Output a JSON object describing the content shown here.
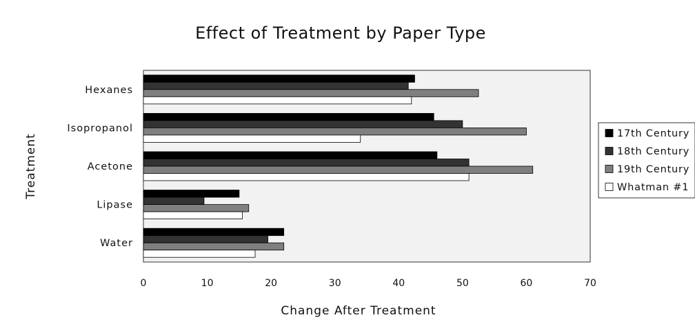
{
  "chart_data": {
    "type": "bar",
    "orientation": "horizontal",
    "title": "Effect of Treatment by Paper Type",
    "xlabel": "Change After Treatment",
    "ylabel": "Treatment",
    "categories": [
      "Hexanes",
      "Isopropanol",
      "Acetone",
      "Lipase",
      "Water"
    ],
    "xlim": [
      0,
      70
    ],
    "xticks": [
      "0",
      "10",
      "20",
      "30",
      "40",
      "50",
      "60",
      "70"
    ],
    "grid": false,
    "legend_position": "right",
    "plot_background": "#f2f2f2",
    "series": [
      {
        "name": "17th Century",
        "color": "#000000",
        "values": [
          42.5,
          45.5,
          46,
          15,
          22
        ]
      },
      {
        "name": "18th Century",
        "color": "#333333",
        "values": [
          41.5,
          50,
          51,
          9.5,
          19.5
        ]
      },
      {
        "name": "19th Century",
        "color": "#7f7f7f",
        "values": [
          52.5,
          60,
          61,
          16.5,
          22
        ]
      },
      {
        "name": "Whatman #1",
        "color": "#ffffff",
        "values": [
          42,
          34,
          51,
          15.5,
          17.5
        ]
      }
    ]
  }
}
